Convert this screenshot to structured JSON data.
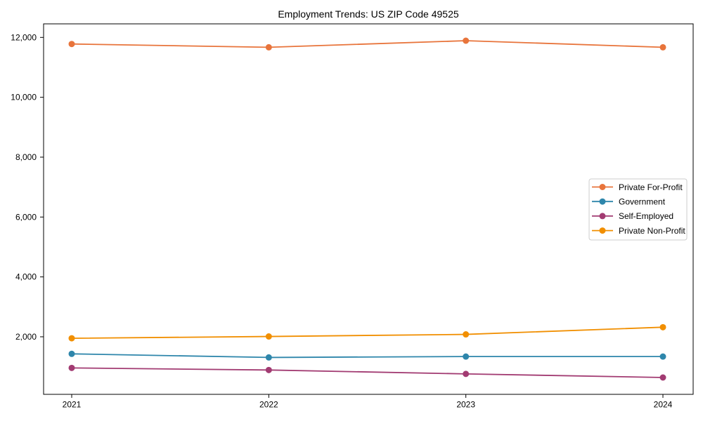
{
  "title": "Employment Trends: US ZIP Code 49525",
  "chart_data": {
    "type": "line",
    "title": "Employment Trends: US ZIP Code 49525",
    "x": [
      2021,
      2022,
      2023,
      2024
    ],
    "xtick_labels": [
      "2021",
      "2022",
      "2023",
      "2024"
    ],
    "series": [
      {
        "name": "Private For-Profit",
        "color": "#E8743B",
        "values": [
          11780,
          11670,
          11890,
          11670
        ]
      },
      {
        "name": "Government",
        "color": "#2E86AB",
        "values": [
          1430,
          1310,
          1340,
          1340
        ]
      },
      {
        "name": "Self-Employed",
        "color": "#A23B72",
        "values": [
          960,
          890,
          760,
          640
        ]
      },
      {
        "name": "Private Non-Profit",
        "color": "#F18F01",
        "values": [
          1950,
          2010,
          2080,
          2320
        ]
      }
    ],
    "ylim": [
      77.5,
      12452.5
    ],
    "yticks": [
      2000,
      4000,
      6000,
      8000,
      10000,
      12000
    ],
    "ytick_labels": [
      "2,000",
      "4,000",
      "6,000",
      "8,000",
      "10,000",
      "12,000"
    ],
    "legend_position": "center right",
    "grid": false,
    "marker": "o",
    "axis_color": "#000000",
    "legend_border_color": "#cccccc"
  }
}
